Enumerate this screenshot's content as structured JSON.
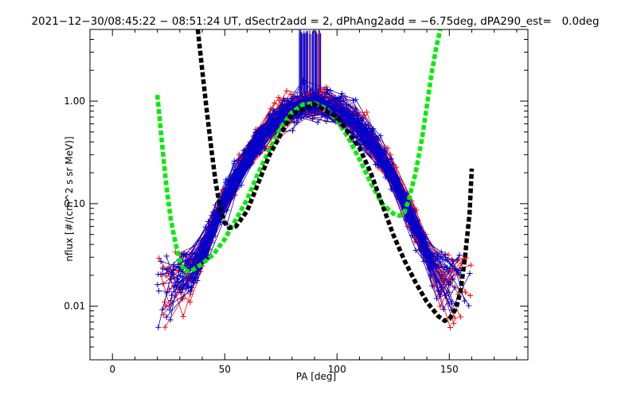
{
  "chart_data": {
    "type": "line",
    "title": "2021−12−30/08:45:22 − 08:51:24 UT, dSectr2add = 2, dPhAng2add = −6.75deg, dPA290_est=   0.0deg",
    "xlabel": "PA [deg]",
    "ylabel": "nflux [#/(cm^2 s sr MeV)]",
    "x_scale": "linear",
    "y_scale": "log",
    "xlim": [
      -10,
      185
    ],
    "ylim": [
      0.003,
      5
    ],
    "x_ticks": [
      0,
      50,
      100,
      150
    ],
    "x_tick_labels": [
      "0",
      "50",
      "100",
      "150"
    ],
    "y_ticks": [
      0.01,
      0.1,
      1
    ],
    "y_tick_labels": [
      "0.01",
      "0.10",
      "1.00"
    ],
    "grid": false,
    "legend": "none",
    "colors": {
      "red_series": "#ff0000",
      "blue_series": "#0000cc",
      "green_fit": "#00ee00",
      "black_fit": "#000000"
    },
    "fit_curves": [
      {
        "color": "#00ee00",
        "style": "dashed-thick",
        "x": [
          20,
          22,
          24,
          26,
          28,
          30,
          32,
          35,
          40,
          45,
          50,
          55,
          60,
          65,
          70,
          75,
          80,
          85,
          90,
          95,
          100,
          105,
          110,
          115,
          120,
          125,
          128,
          130,
          132,
          135,
          138,
          140,
          142,
          144,
          146
        ],
        "y": [
          1.15,
          0.4,
          0.15,
          0.07,
          0.042,
          0.028,
          0.022,
          0.022,
          0.026,
          0.032,
          0.045,
          0.07,
          0.11,
          0.2,
          0.34,
          0.55,
          0.78,
          0.93,
          0.95,
          0.85,
          0.65,
          0.44,
          0.27,
          0.16,
          0.1,
          0.08,
          0.076,
          0.082,
          0.11,
          0.2,
          0.45,
          0.9,
          1.8,
          3.2,
          5
        ]
      },
      {
        "color": "#000000",
        "style": "dashed-thick",
        "x": [
          38,
          40,
          42,
          44,
          46,
          48,
          50,
          52,
          55,
          60,
          70,
          80,
          90,
          100,
          110,
          115,
          120,
          125,
          130,
          135,
          140,
          145,
          148,
          150,
          153,
          155,
          157,
          159,
          160
        ],
        "y": [
          5,
          2,
          0.8,
          0.35,
          0.16,
          0.09,
          0.065,
          0.058,
          0.06,
          0.085,
          0.3,
          0.75,
          0.93,
          0.7,
          0.35,
          0.2,
          0.1,
          0.05,
          0.028,
          0.017,
          0.011,
          0.008,
          0.0072,
          0.0075,
          0.0095,
          0.014,
          0.03,
          0.08,
          0.22
        ]
      }
    ]
  }
}
